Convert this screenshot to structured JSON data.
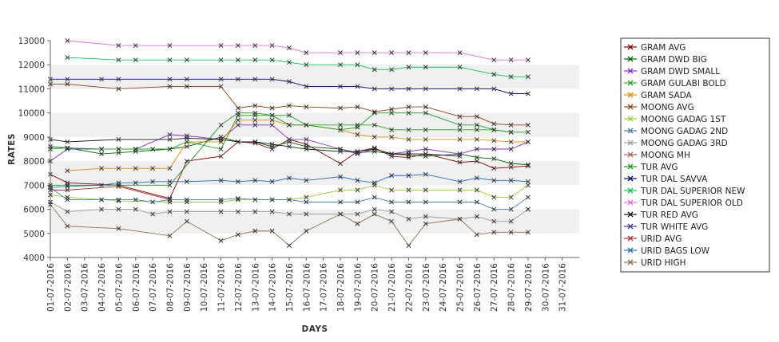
{
  "chart_data": {
    "type": "line",
    "xlabel": "DAYS",
    "ylabel": "RATES",
    "ylim": [
      4000,
      13000
    ],
    "yticks": [
      4000,
      5000,
      6000,
      7000,
      8000,
      9000,
      10000,
      11000,
      12000,
      13000
    ],
    "grid": "alternating horizontal bands",
    "legend_position": "right",
    "categories": [
      "01-07-2016",
      "02-07-2016",
      "03-07-2016",
      "04-07-2016",
      "05-07-2016",
      "06-07-2016",
      "07-07-2016",
      "08-07-2016",
      "09-07-2016",
      "10-07-2016",
      "11-07-2016",
      "12-07-2016",
      "13-07-2016",
      "14-07-2016",
      "15-07-2016",
      "16-07-2016",
      "17-07-2016",
      "18-07-2016",
      "19-07-2016",
      "20-07-2016",
      "21-07-2016",
      "22-07-2016",
      "23-07-2016",
      "24-07-2016",
      "25-07-2016",
      "26-07-2016",
      "27-07-2016",
      "28-07-2016",
      "29-07-2016",
      "30-07-2016",
      "31-07-2016"
    ],
    "series": [
      {
        "name": "GRAM AVG",
        "color": "#8b0000",
        "values": [
          7450,
          7100,
          null,
          null,
          7000,
          null,
          null,
          6450,
          8000,
          null,
          8200,
          8800,
          8750,
          8500,
          8900,
          8700,
          null,
          7900,
          8400,
          8550,
          8200,
          8150,
          8300,
          null,
          7950,
          8000,
          7700,
          7750,
          7800,
          null,
          null
        ]
      },
      {
        "name": "GRAM DWD BIG",
        "color": "#006400",
        "values": [
          8600,
          8550,
          null,
          8300,
          8350,
          8400,
          null,
          8500,
          8600,
          null,
          9000,
          8800,
          8800,
          8600,
          8800,
          8600,
          null,
          8500,
          8350,
          8400,
          8300,
          8250,
          8200,
          null,
          8300,
          8150,
          8100,
          7900,
          7850,
          null,
          null
        ]
      },
      {
        "name": "GRAM DWD SMALL",
        "color": "#8a2be2",
        "values": [
          8000,
          8500,
          null,
          8500,
          8500,
          8500,
          null,
          9100,
          9050,
          null,
          8900,
          9500,
          9500,
          9500,
          8900,
          8900,
          null,
          8500,
          8300,
          8500,
          8300,
          8400,
          8500,
          null,
          8300,
          8500,
          8500,
          8500,
          8800,
          null,
          null
        ]
      },
      {
        "name": "GRAM GULABI BOLD",
        "color": "#22aa22",
        "values": [
          8500,
          8550,
          null,
          8500,
          8500,
          8500,
          8500,
          8500,
          8800,
          null,
          8500,
          9900,
          9900,
          9900,
          9900,
          9500,
          null,
          9500,
          9500,
          9500,
          9300,
          9300,
          9300,
          null,
          9300,
          9300,
          9300,
          9200,
          9200,
          null,
          null
        ]
      },
      {
        "name": "GRAM SADA",
        "color": "#e68a00",
        "values": [
          null,
          7600,
          null,
          7700,
          7700,
          7700,
          7700,
          7700,
          8800,
          null,
          8800,
          9700,
          9700,
          9700,
          9500,
          9500,
          null,
          9300,
          9100,
          9000,
          9000,
          8900,
          8900,
          null,
          8900,
          8900,
          8850,
          8800,
          8800,
          null,
          null
        ]
      },
      {
        "name": "MOONG AVG",
        "color": "#8b4513",
        "values": [
          11200,
          11200,
          null,
          null,
          11000,
          null,
          null,
          11100,
          11100,
          null,
          11100,
          10200,
          10300,
          10200,
          10300,
          10250,
          null,
          10200,
          10250,
          10050,
          10150,
          10250,
          10250,
          null,
          9850,
          9850,
          9550,
          9500,
          9500,
          null,
          null
        ]
      },
      {
        "name": "MOONG GADAG 1ST",
        "color": "#9acd32",
        "values": [
          6600,
          6500,
          null,
          6400,
          6350,
          null,
          null,
          6300,
          6300,
          null,
          6300,
          6400,
          6400,
          6400,
          6400,
          6500,
          null,
          6800,
          6800,
          7000,
          6800,
          6800,
          6800,
          null,
          6800,
          6800,
          6500,
          6500,
          7000,
          null,
          null
        ]
      },
      {
        "name": "MOONG GADAG 2ND",
        "color": "#4682b4",
        "values": [
          6900,
          6400,
          null,
          6400,
          6400,
          6400,
          6300,
          6400,
          6400,
          null,
          6400,
          6450,
          6400,
          6400,
          6400,
          6300,
          null,
          6300,
          6300,
          6500,
          6300,
          6300,
          6300,
          null,
          6300,
          6300,
          6000,
          6000,
          6500,
          null,
          null
        ]
      },
      {
        "name": "MOONG GADAG 3RD",
        "color": "#999999",
        "values": [
          6300,
          5900,
          null,
          6000,
          6000,
          6000,
          5800,
          5900,
          5900,
          null,
          5900,
          5900,
          5900,
          5900,
          5800,
          5800,
          null,
          5800,
          5800,
          6000,
          5900,
          5600,
          5700,
          null,
          5600,
          5700,
          5500,
          5500,
          6000,
          null,
          null
        ]
      },
      {
        "name": "MOONG MH",
        "color": "#b05a5a",
        "values": [
          null,
          null,
          null,
          null,
          null,
          null,
          null,
          null,
          null,
          null,
          null,
          null,
          null,
          null,
          null,
          null,
          null,
          null,
          null,
          null,
          null,
          null,
          null,
          null,
          null,
          null,
          null,
          null,
          6000,
          null,
          null
        ]
      },
      {
        "name": "TUR AVG",
        "color": "#1a9e1a",
        "values": [
          7000,
          7000,
          null,
          null,
          7000,
          null,
          null,
          7000,
          null,
          null,
          9500,
          10000,
          10000,
          9900,
          9500,
          9500,
          null,
          9300,
          9400,
          10000,
          10000,
          10000,
          10000,
          null,
          9500,
          9500,
          9300,
          9200,
          null,
          null,
          null
        ]
      },
      {
        "name": "TUR DAL SAVVA",
        "color": "#000080",
        "values": [
          11400,
          11400,
          null,
          11400,
          11400,
          null,
          null,
          11400,
          11400,
          null,
          11400,
          11400,
          11400,
          11400,
          11300,
          11100,
          null,
          11100,
          11100,
          11000,
          11000,
          11000,
          11000,
          null,
          11000,
          11000,
          11000,
          10800,
          10800,
          null,
          null
        ]
      },
      {
        "name": "TUR DAL SUPERIOR NEW",
        "color": "#00c853",
        "values": [
          null,
          12300,
          null,
          null,
          12200,
          12200,
          null,
          12200,
          12200,
          null,
          12200,
          12200,
          12200,
          12200,
          12100,
          12000,
          null,
          12000,
          12000,
          11800,
          11800,
          11900,
          11900,
          null,
          11900,
          null,
          11600,
          11500,
          11500,
          null,
          null
        ]
      },
      {
        "name": "TUR DAL SUPERIOR OLD",
        "color": "#d870e0",
        "values": [
          null,
          13000,
          null,
          null,
          12800,
          12800,
          null,
          12800,
          null,
          null,
          12800,
          12800,
          12800,
          12800,
          12700,
          12500,
          null,
          12500,
          12500,
          12500,
          12500,
          12500,
          12500,
          null,
          12500,
          null,
          12200,
          12200,
          12200,
          null,
          null
        ]
      },
      {
        "name": "TUR RED AVG",
        "color": "#111111",
        "values": [
          8900,
          8800,
          null,
          null,
          8900,
          null,
          null,
          8900,
          8950,
          null,
          8900,
          8800,
          8800,
          8700,
          8600,
          8500,
          null,
          8400,
          8400,
          8500,
          8300,
          8300,
          8300,
          null,
          8200,
          null,
          null,
          null,
          null,
          null,
          null
        ]
      },
      {
        "name": "TUR WHITE AVG",
        "color": "#3a3aaa",
        "values": [
          null,
          null,
          null,
          null,
          null,
          null,
          null,
          null,
          null,
          null,
          null,
          null,
          null,
          null,
          null,
          null,
          null,
          null,
          null,
          null,
          null,
          null,
          null,
          null,
          null,
          null,
          null,
          null,
          null,
          null,
          null
        ]
      },
      {
        "name": "URID AVG",
        "color": "#a83232",
        "values": [
          6800,
          6800,
          null,
          null,
          6950,
          null,
          null,
          6400,
          null,
          null,
          null,
          null,
          null,
          null,
          null,
          null,
          null,
          null,
          null,
          null,
          null,
          null,
          null,
          null,
          null,
          null,
          null,
          null,
          null,
          null,
          null
        ]
      },
      {
        "name": "URID BAGS LOW",
        "color": "#1f6fbf",
        "values": [
          6900,
          6950,
          null,
          7000,
          7100,
          7100,
          7150,
          7150,
          7150,
          null,
          7200,
          7150,
          7200,
          7150,
          7300,
          7200,
          null,
          7350,
          7200,
          7100,
          7400,
          7400,
          7450,
          null,
          7150,
          7300,
          7200,
          7200,
          7150,
          null,
          null
        ]
      },
      {
        "name": "URID HIGH",
        "color": "#8b7355",
        "values": [
          6200,
          5300,
          null,
          null,
          5200,
          null,
          null,
          4900,
          5500,
          null,
          4700,
          4950,
          5100,
          5100,
          4500,
          5100,
          null,
          5800,
          5400,
          5800,
          5500,
          4500,
          5400,
          null,
          5600,
          4950,
          5050,
          5050,
          5050,
          null,
          null
        ]
      }
    ]
  }
}
